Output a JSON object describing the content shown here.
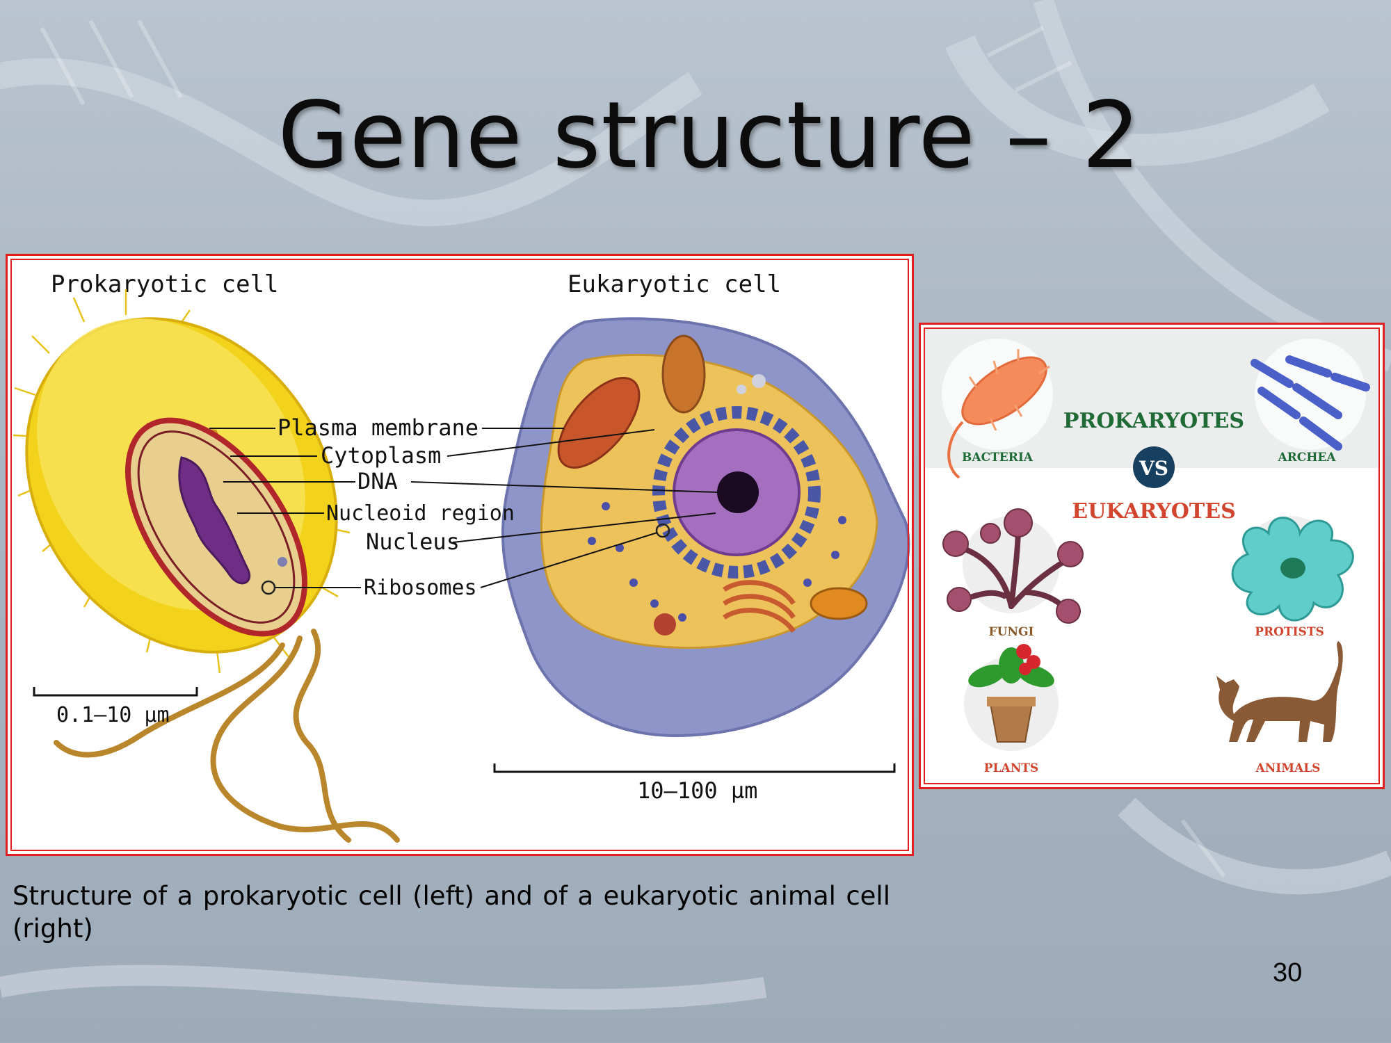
{
  "slide": {
    "title": "Gene structure – 2",
    "caption": "Structure of a prokaryotic cell (left) and of a eukaryotic animal cell (right)",
    "page_number": "30"
  },
  "cell_figure": {
    "prokaryotic_heading": "Prokaryotic cell",
    "eukaryotic_heading": "Eukaryotic cell",
    "labels": {
      "plasma_membrane": "Plasma membrane",
      "cytoplasm": "Cytoplasm",
      "dna": "DNA",
      "nucleoid_region": "Nucleoid region",
      "nucleus": "Nucleus",
      "ribosomes": "Ribosomes"
    },
    "scale_prokaryotic": "0.1–10 µm",
    "scale_eukaryotic": "10–100 µm"
  },
  "comparison_figure": {
    "prokaryotes": "PROKARYOTES",
    "vs": "VS",
    "eukaryotes": "EUKARYOTES",
    "bacteria": "BACTERIA",
    "archea": "ARCHEA",
    "fungi": "FUNGI",
    "protists": "PROTISTS",
    "plants": "PLANTS",
    "animals": "ANIMALS"
  },
  "colors": {
    "frame_red": "#e01f1f",
    "prokaryotes_green": "#1f6b35",
    "eukaryotes_red": "#d2452e",
    "vs_navy": "#173f5f",
    "label_tan": "#8a5a2b"
  }
}
